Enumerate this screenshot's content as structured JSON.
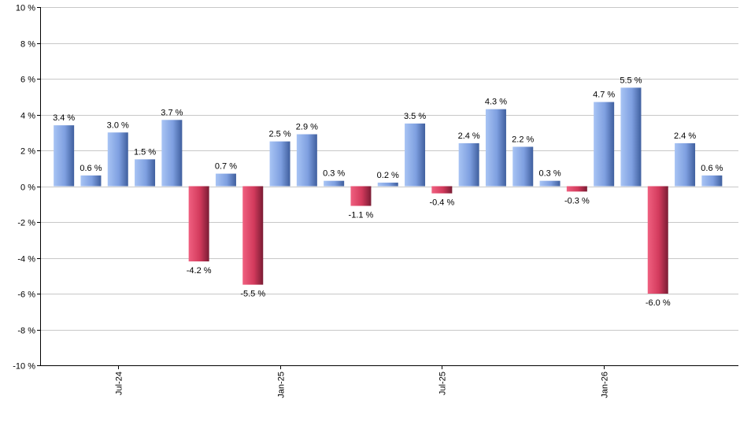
{
  "chart_data": {
    "type": "bar",
    "title": "",
    "xlabel": "",
    "ylabel": "",
    "ylim": [
      -10,
      10
    ],
    "yticks": [
      -10,
      -8,
      -6,
      -4,
      -2,
      0,
      2,
      4,
      6,
      8,
      10
    ],
    "ytick_labels": [
      "-10 %",
      "-8 %",
      "-6 %",
      "-4 %",
      "-2 %",
      "0 %",
      "2 %",
      "4 %",
      "6 %",
      "8 %",
      "10 %"
    ],
    "grid": true,
    "legend": "none",
    "values": [
      3.4,
      0.6,
      3.0,
      1.5,
      3.7,
      -4.2,
      0.7,
      -5.5,
      2.5,
      2.9,
      0.3,
      -1.1,
      0.2,
      3.5,
      -0.4,
      2.4,
      4.3,
      2.2,
      0.3,
      -0.3,
      4.7,
      5.5,
      -6.0,
      2.4,
      0.6
    ],
    "value_labels": [
      "3.4 %",
      "0.6 %",
      "3.0 %",
      "1.5 %",
      "3.7 %",
      "-4.2 %",
      "0.7 %",
      "-5.5 %",
      "2.5 %",
      "2.9 %",
      "0.3 %",
      "-1.1 %",
      "0.2 %",
      "3.5 %",
      "-0.4 %",
      "2.4 %",
      "4.3 %",
      "2.2 %",
      "0.3 %",
      "-0.3 %",
      "4.7 %",
      "5.5 %",
      "-6.0 %",
      "2.4 %",
      "0.6 %"
    ],
    "xticks": [
      {
        "bar_index": 2,
        "label": "Jul-24"
      },
      {
        "bar_index": 8,
        "label": "Jan-25"
      },
      {
        "bar_index": 14,
        "label": "Jul-25"
      },
      {
        "bar_index": 20,
        "label": "Jan-26"
      }
    ],
    "colors": {
      "positive_light": "#a8c4f4",
      "positive_dark": "#3f5f9e",
      "negative_light": "#f06080",
      "negative_dark": "#7a1c34",
      "grid": "#c8c8c8"
    }
  }
}
